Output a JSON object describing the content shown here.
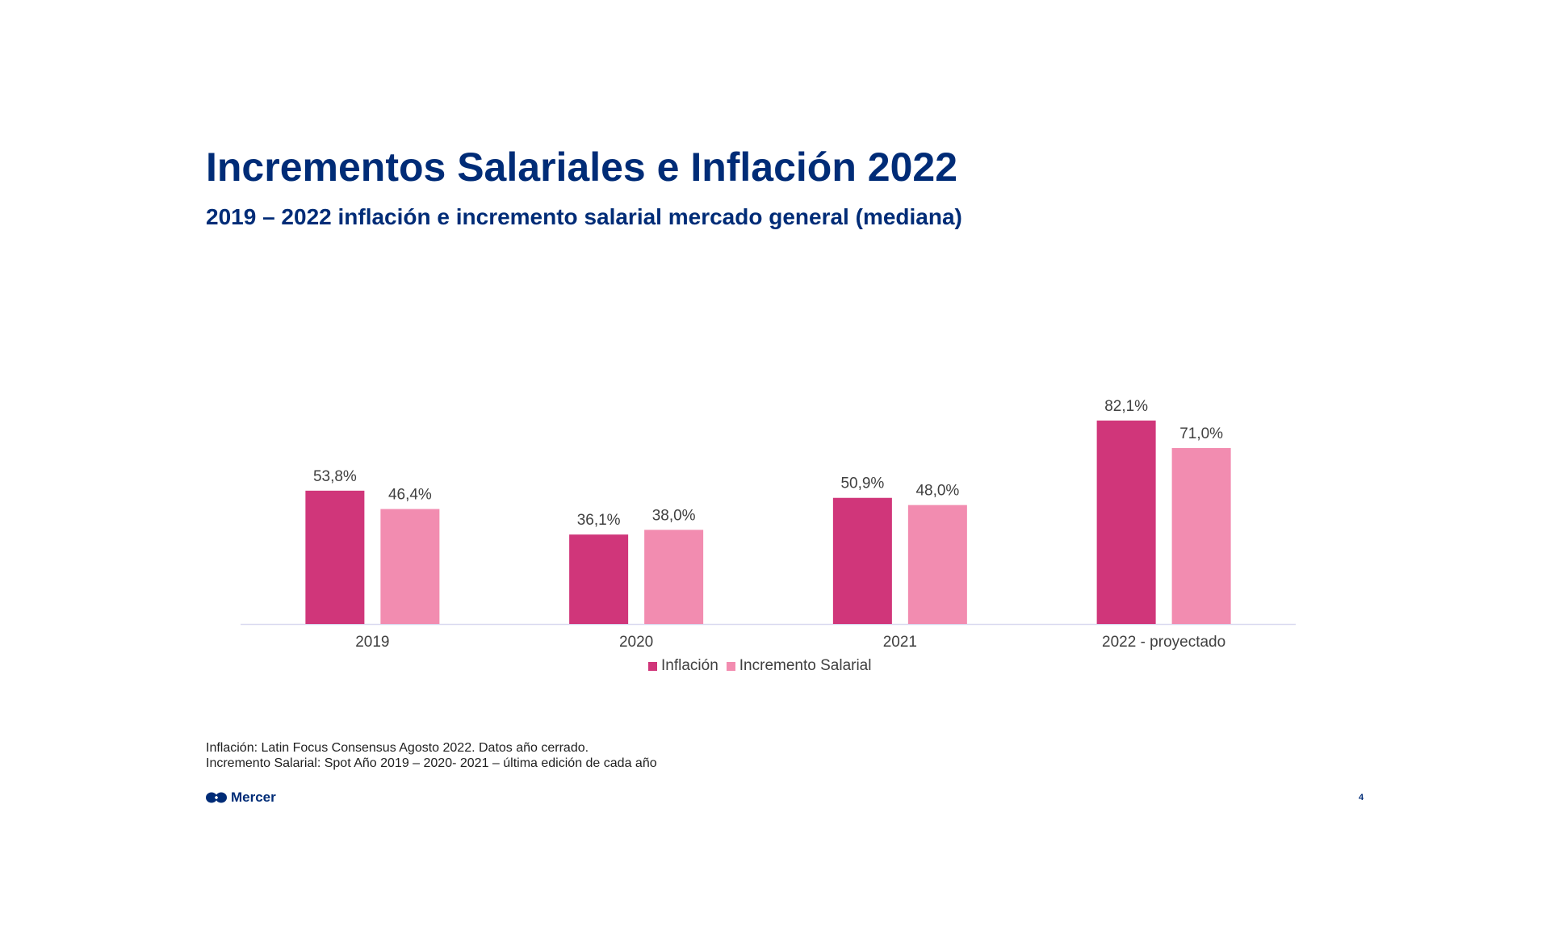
{
  "title": "Incrementos Salariales e Inflación 2022",
  "subtitle": "2019 – 2022 inflación e incremento salarial mercado general (mediana)",
  "chart_data": {
    "type": "bar",
    "categories": [
      "2019",
      "2020",
      "2021",
      "2022 - proyectado"
    ],
    "series": [
      {
        "name": "Inflación",
        "color": "#d0367a",
        "values": [
          53.8,
          36.1,
          50.9,
          82.1
        ],
        "labels": [
          "53,8%",
          "36,1%",
          "50,9%",
          "82,1%"
        ]
      },
      {
        "name": "Incremento Salarial",
        "color": "#f28cb0",
        "values": [
          46.4,
          38.0,
          48.0,
          71.0
        ],
        "labels": [
          "46,4%",
          "38,0%",
          "48,0%",
          "71,0%"
        ]
      }
    ],
    "title": "2019 – 2022 inflación e incremento salarial mercado general (mediana)",
    "xlabel": "",
    "ylabel": "",
    "ylim": [
      0,
      90
    ],
    "grid": false,
    "legend_position": "bottom-center"
  },
  "legend": {
    "inflacion": "Inflación",
    "incremento": "Incremento Salarial"
  },
  "source": {
    "line1": "Inflación: Latin Focus Consensus Agosto 2022. Datos año cerrado.",
    "line2": "Incremento Salarial: Spot Año 2019 – 2020- 2021 – última edición de cada año"
  },
  "brand": {
    "name": "Mercer",
    "logo_icon": "mercer-logo-icon"
  },
  "page_number": "4",
  "colors": {
    "title": "#002c77",
    "axis": "#d9d9f0"
  }
}
